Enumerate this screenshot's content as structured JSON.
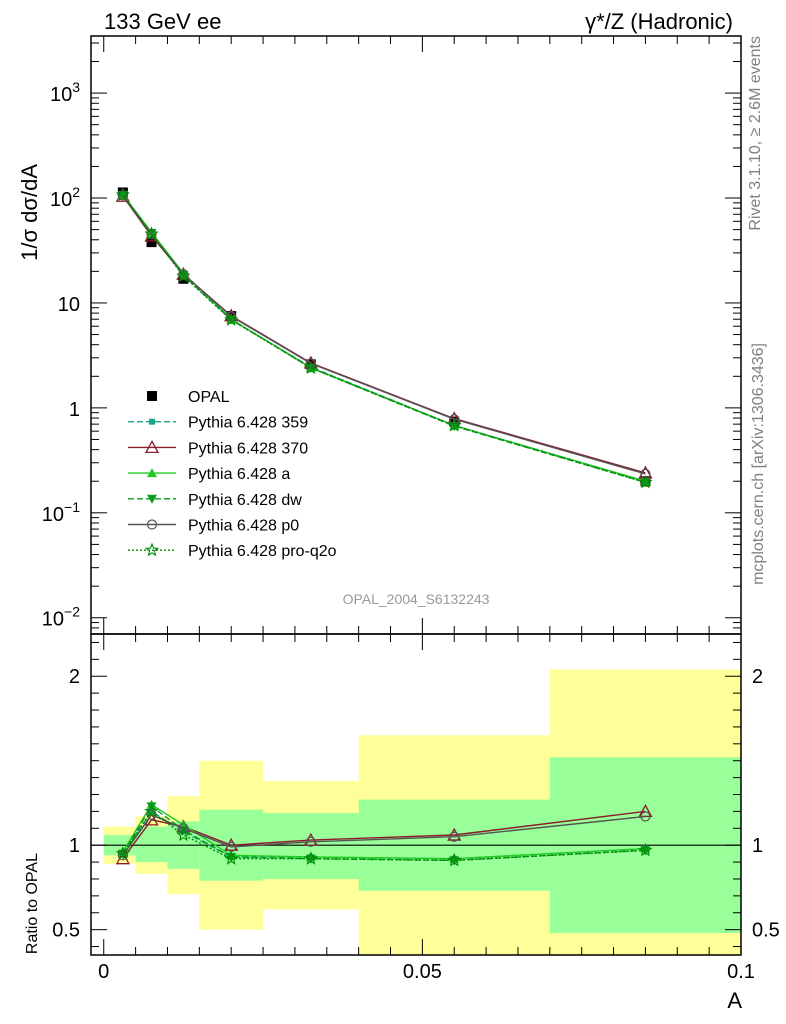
{
  "header": {
    "left": "133 GeV ee",
    "right": "γ*/Z (Hadronic)"
  },
  "side_labels": {
    "rivet": "Rivet 3.1.10, ≥ 2.6M events",
    "mcplots": "mcplots.cern.ch [arXiv:1306.3436]"
  },
  "colors": {
    "opal": "#000000",
    "p359": "#1aa58c",
    "p370": "#8b1a2a",
    "pa": "#22cc22",
    "pdw": "#0a9e1e",
    "pp0": "#555555",
    "pq2o": "#008800",
    "band_inner": "#99ff99",
    "band_outer": "#ffff99"
  },
  "chart_data": [
    {
      "type": "line",
      "title": "",
      "ylabel": "1/σ dσ/dA",
      "xlabel": "",
      "yscale": "log",
      "xlim": [
        -0.002,
        0.1
      ],
      "ylim": [
        0.007,
        3500
      ],
      "y_ticks": [
        {
          "value": 0.01,
          "base": "10",
          "exp": "−2"
        },
        {
          "value": 0.1,
          "base": "10",
          "exp": "−1"
        },
        {
          "value": 1,
          "base": "1",
          "exp": ""
        },
        {
          "value": 10,
          "base": "10",
          "exp": ""
        },
        {
          "value": 100,
          "base": "10",
          "exp": "2"
        },
        {
          "value": 1000,
          "base": "10",
          "exp": "3"
        }
      ],
      "watermark": "OPAL_2004_S6132243",
      "legend_position": "bottom-left",
      "x": [
        0.003,
        0.0075,
        0.0125,
        0.02,
        0.0325,
        0.055,
        0.085
      ],
      "series": [
        {
          "name": "OPAL",
          "key": "opal",
          "values": [
            113,
            38,
            17,
            7.5,
            2.6,
            0.74,
            0.2
          ]
        },
        {
          "name": "Pythia 6.428 359",
          "key": "p359",
          "values": [
            107,
            46,
            18.3,
            6.9,
            2.45,
            0.68,
            0.2
          ]
        },
        {
          "name": "Pythia 6.428 370",
          "key": "p370",
          "values": [
            104,
            43.5,
            18.8,
            7.55,
            2.68,
            0.79,
            0.24
          ]
        },
        {
          "name": "Pythia 6.428 a",
          "key": "pa",
          "values": [
            108,
            47,
            19.2,
            7.0,
            2.42,
            0.68,
            0.2
          ]
        },
        {
          "name": "Pythia 6.428 dw",
          "key": "pdw",
          "values": [
            107,
            46.5,
            18.5,
            6.95,
            2.4,
            0.67,
            0.195
          ]
        },
        {
          "name": "Pythia 6.428 p0",
          "key": "pp0",
          "values": [
            106,
            45,
            18.8,
            7.45,
            2.65,
            0.78,
            0.235
          ]
        },
        {
          "name": "Pythia 6.428 pro-q2o",
          "key": "pq2o",
          "values": [
            107,
            45.5,
            18.0,
            6.9,
            2.4,
            0.68,
            0.195
          ]
        }
      ]
    },
    {
      "type": "line",
      "title": "",
      "ylabel": "Ratio to OPAL",
      "xlabel": "A",
      "xlim": [
        -0.002,
        0.1
      ],
      "ylim": [
        0.35,
        2.25
      ],
      "x_ticks": [
        "0",
        "0.05",
        "0.1"
      ],
      "x_tick_values": [
        0,
        0.05,
        0.1
      ],
      "y_ticks": [
        "0.5",
        "1",
        "2"
      ],
      "y_tick_values": [
        0.5,
        1,
        2
      ],
      "reference_line": 1,
      "bins": [
        {
          "x0": 0.0,
          "x1": 0.005,
          "inner": [
            0.94,
            1.06
          ],
          "outer": [
            0.89,
            1.11
          ]
        },
        {
          "x0": 0.005,
          "x1": 0.01,
          "inner": [
            0.9,
            1.11
          ],
          "outer": [
            0.83,
            1.17
          ]
        },
        {
          "x0": 0.01,
          "x1": 0.015,
          "inner": [
            0.86,
            1.14
          ],
          "outer": [
            0.71,
            1.29
          ]
        },
        {
          "x0": 0.015,
          "x1": 0.025,
          "inner": [
            0.79,
            1.21
          ],
          "outer": [
            0.5,
            1.5
          ]
        },
        {
          "x0": 0.025,
          "x1": 0.04,
          "inner": [
            0.8,
            1.19
          ],
          "outer": [
            0.62,
            1.38
          ]
        },
        {
          "x0": 0.04,
          "x1": 0.07,
          "inner": [
            0.73,
            1.27
          ],
          "outer": [
            0.35,
            1.65
          ]
        },
        {
          "x0": 0.07,
          "x1": 0.1,
          "inner": [
            0.48,
            1.52
          ],
          "outer": [
            0.35,
            2.04
          ]
        }
      ],
      "x": [
        0.003,
        0.0075,
        0.0125,
        0.02,
        0.0325,
        0.055,
        0.085
      ],
      "series": [
        {
          "name": "Pythia 6.428 359",
          "key": "p359",
          "values": [
            0.95,
            1.2,
            1.08,
            0.93,
            0.93,
            0.92,
            0.98
          ]
        },
        {
          "name": "Pythia 6.428 370",
          "key": "p370",
          "values": [
            0.92,
            1.15,
            1.11,
            1.0,
            1.03,
            1.06,
            1.2
          ]
        },
        {
          "name": "Pythia 6.428 a",
          "key": "pa",
          "values": [
            0.96,
            1.24,
            1.12,
            0.94,
            0.93,
            0.92,
            0.98
          ]
        },
        {
          "name": "Pythia 6.428 dw",
          "key": "pdw",
          "values": [
            0.95,
            1.23,
            1.09,
            0.93,
            0.92,
            0.91,
            0.97
          ]
        },
        {
          "name": "Pythia 6.428 p0",
          "key": "pp0",
          "values": [
            0.94,
            1.18,
            1.1,
            0.99,
            1.02,
            1.05,
            1.17
          ]
        },
        {
          "name": "Pythia 6.428 pro-q2o",
          "key": "pq2o",
          "values": [
            0.95,
            1.2,
            1.06,
            0.92,
            0.92,
            0.91,
            0.97
          ]
        }
      ]
    }
  ]
}
